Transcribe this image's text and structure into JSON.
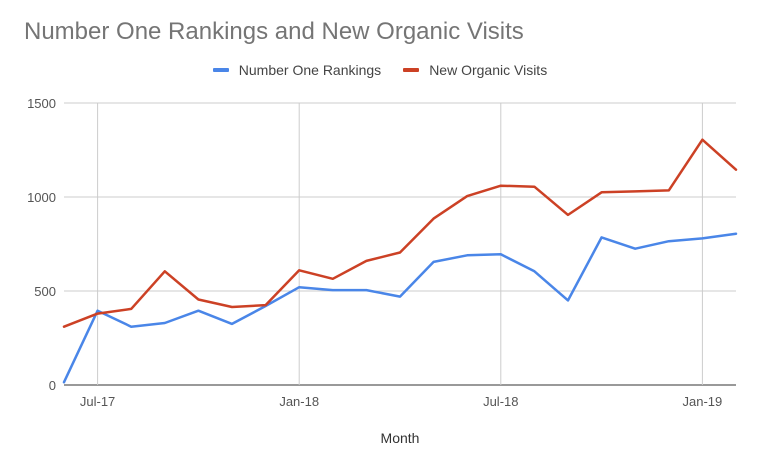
{
  "chart_data": {
    "type": "line",
    "title": "Number One Rankings and New Organic Visits",
    "xlabel": "Month",
    "ylabel": "",
    "ylim": [
      0,
      1500
    ],
    "yticks": [
      0,
      500,
      1000,
      1500
    ],
    "x": [
      "2017-06",
      "2017-07",
      "2017-08",
      "2017-09",
      "2017-10",
      "2017-11",
      "2017-12",
      "2018-01",
      "2018-02",
      "2018-03",
      "2018-04",
      "2018-05",
      "2018-06",
      "2018-07",
      "2018-08",
      "2018-09",
      "2018-10",
      "2018-11",
      "2018-12",
      "2019-01",
      "2019-02"
    ],
    "xtick_labels": [
      {
        "x": "2017-07",
        "label": "Jul-17"
      },
      {
        "x": "2018-01",
        "label": "Jan-18"
      },
      {
        "x": "2018-07",
        "label": "Jul-18"
      },
      {
        "x": "2019-01",
        "label": "Jan-19"
      }
    ],
    "legend_position": "top",
    "grid": true,
    "series": [
      {
        "name": "Number One Rankings",
        "color": "#4a86e8",
        "values": [
          15,
          395,
          310,
          330,
          395,
          325,
          420,
          520,
          505,
          505,
          470,
          655,
          690,
          695,
          605,
          450,
          785,
          725,
          765,
          780,
          805
        ]
      },
      {
        "name": "New Organic Visits",
        "color": "#cc4125",
        "values": [
          310,
          380,
          405,
          605,
          455,
          415,
          425,
          610,
          565,
          660,
          705,
          885,
          1005,
          1060,
          1055,
          905,
          1025,
          1030,
          1035,
          1305,
          1145
        ]
      }
    ]
  }
}
